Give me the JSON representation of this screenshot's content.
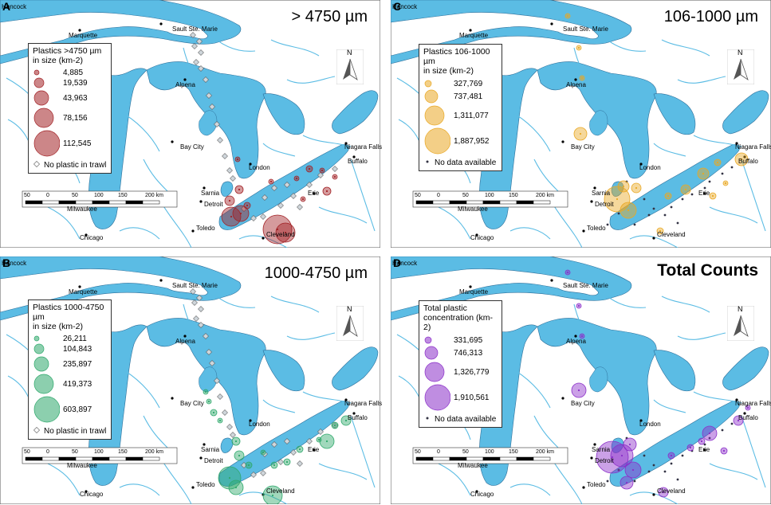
{
  "colors": {
    "water": "#5bbce4",
    "land": "#ffffff",
    "shore": "#2d6f9a",
    "red": "#a22226",
    "green": "#2ea86b",
    "orange": "#e9a824",
    "purple": "#8b2fc9"
  },
  "cities": {
    "hancock": "Hancock",
    "marquette": "Marquette",
    "sault": "Sault Ste. Marie",
    "alpena": "Alpena",
    "baycity": "Bay City",
    "sarnia": "Sarnia",
    "london": "London",
    "niagara": "Niagara Falls",
    "buffalo": "Buffalo",
    "milwaukee": "Milwaukee",
    "detroit": "Detroit",
    "erie": "Erie",
    "toledo": "Toledo",
    "cleveland": "Cleveland",
    "chicago": "Chicago"
  },
  "scale_labels": [
    "50",
    "0",
    "50",
    "100",
    "150",
    "200 km"
  ],
  "north_label": "N",
  "panels": [
    {
      "letter": "A",
      "title": "> 4750 µm",
      "color": "red",
      "legend_title": "Plastics >4750 µm\nin size (km-2)",
      "values": [
        "4,885",
        "19,539",
        "43,963",
        "78,156",
        "112,545"
      ],
      "foot": "No plastic in trawl",
      "foot_type": "diamond"
    },
    {
      "letter": "C",
      "title": "106-1000 µm",
      "color": "orange",
      "legend_title": "Plastics 106-1000 µm\nin size (km-2)",
      "values": [
        "327,769",
        "737,481",
        "1,311,077",
        "1,887,952"
      ],
      "foot": "No data available",
      "foot_type": "dot"
    },
    {
      "letter": "B",
      "title": "1000-4750 µm",
      "color": "green",
      "legend_title": "Plastics 1000-4750 µm\nin size (km-2)",
      "values": [
        "26,211",
        "104,843",
        "235,897",
        "419,373",
        "603,897"
      ],
      "foot": "No plastic in trawl",
      "foot_type": "diamond"
    },
    {
      "letter": "D",
      "title": "Total Counts",
      "color": "purple",
      "legend_title": "Total plastic\nconcentration (km-2)",
      "values": [
        "331,695",
        "746,313",
        "1,326,779",
        "1,910,561"
      ],
      "foot": "No data available",
      "foot_type": "dot"
    }
  ]
}
